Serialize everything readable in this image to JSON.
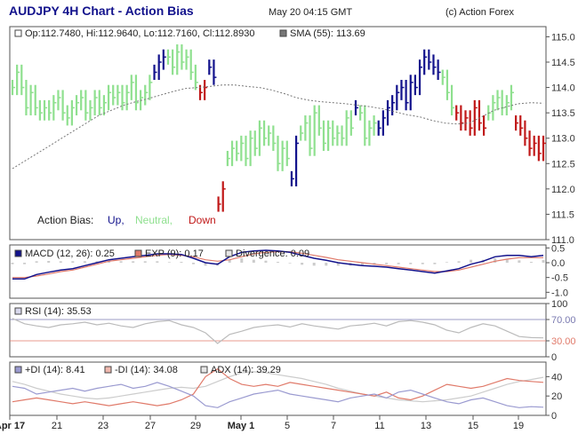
{
  "header": {
    "title": "AUDJPY 4H Chart - Action Bias",
    "datetime": "May 20 04:15 GMT",
    "copyright": "(c) Action Forex"
  },
  "colors": {
    "up": "#12128c",
    "neutral": "#8fe08f",
    "down": "#c01818",
    "sma": "#777777",
    "macd": "#12128c",
    "exp": "#e07a6a",
    "divergence": "#cccccc",
    "rsi": "#9a9ad0",
    "rsi_line": "#bbbbbb",
    "rsi70": "#7a7ab0",
    "rsi30": "#e07a6a",
    "plus_di": "#9a9ad0",
    "minus_di": "#e07a6a",
    "adx": "#cccccc"
  },
  "chart_data": [
    {
      "type": "ohlc",
      "panel": "price",
      "legend": {
        "ohlc": "Op:112.7480, Hi:112.9640, Lo:112.7160, Cl:112.8930",
        "sma": "SMA (55): 113.69"
      },
      "bias_legend": {
        "label": "Action Bias:",
        "up": "Up,",
        "neutral": "Neutral,",
        "down": "Down"
      },
      "ylim": [
        111.0,
        115.2
      ],
      "yticks": [
        "115.0",
        "114.5",
        "114.0",
        "113.5",
        "113.0",
        "112.5",
        "112.0",
        "111.5",
        "111.0"
      ],
      "series": {
        "bias_segments": [
          {
            "bias": "neutral",
            "values": [
              114.0,
              114.3,
              114.0,
              113.6,
              113.9,
              113.6,
              113.5,
              113.6,
              113.5,
              113.7,
              113.8,
              113.5,
              113.4,
              113.6,
              113.7,
              113.8,
              113.5,
              113.6,
              113.8,
              113.6,
              113.7,
              113.9,
              113.8,
              113.9,
              113.7,
              113.9,
              114.1,
              113.7,
              113.8,
              113.9,
              114.1
            ]
          },
          {
            "bias": "up",
            "values": [
              114.3,
              114.5,
              114.6
            ]
          },
          {
            "bias": "neutral",
            "values": [
              114.6,
              114.4,
              114.7,
              114.5,
              114.6,
              114.3,
              114.1
            ]
          },
          {
            "bias": "down",
            "values": [
              113.9,
              114.0
            ]
          },
          {
            "bias": "up",
            "values": [
              114.4,
              114.2
            ]
          },
          {
            "bias": "down",
            "values": [
              111.7,
              112.0
            ]
          },
          {
            "bias": "neutral",
            "values": [
              112.6,
              112.8,
              112.7,
              112.9,
              112.6,
              113.0,
              112.8,
              113.2,
              113.0,
              113.1,
              112.9,
              112.5,
              112.8,
              112.6
            ]
          },
          {
            "bias": "up",
            "values": [
              112.2,
              112.9
            ]
          },
          {
            "bias": "neutral",
            "values": [
              113.1,
              113.3,
              112.8,
              113.5,
              113.2,
              112.9,
              113.2,
              113.0,
              113.1,
              113.0,
              113.4,
              113.2
            ]
          },
          {
            "bias": "up",
            "values": [
              113.6
            ]
          },
          {
            "bias": "neutral",
            "values": [
              113.5,
              113.0,
              113.2,
              113.3
            ]
          },
          {
            "bias": "up",
            "values": [
              113.2,
              113.4,
              113.6,
              113.7,
              113.9,
              114.0,
              113.7,
              114.1,
              114.0,
              114.4,
              114.6,
              114.5,
              114.4,
              114.3
            ]
          },
          {
            "bias": "neutral",
            "values": [
              114.2,
              113.9,
              113.6
            ]
          },
          {
            "bias": "down",
            "values": [
              113.5,
              113.3,
              113.4,
              113.2,
              113.6,
              113.3,
              113.2
            ]
          },
          {
            "bias": "neutral",
            "values": [
              113.5,
              113.7,
              113.8,
              113.6,
              113.7,
              113.9
            ]
          },
          {
            "bias": "down",
            "values": [
              113.3,
              113.2,
              113.0,
              112.8,
              112.9,
              112.7,
              112.9
            ]
          }
        ],
        "sma": [
          112.4,
          112.55,
          112.7,
          112.85,
          113.0,
          113.15,
          113.3,
          113.45,
          113.55,
          113.65,
          113.72,
          113.78,
          113.85,
          113.92,
          113.98,
          114.0,
          114.02,
          114.05,
          114.05,
          114.02,
          114.0,
          113.95,
          113.88,
          113.8,
          113.75,
          113.72,
          113.7,
          113.68,
          113.65,
          113.62,
          113.58,
          113.52,
          113.46,
          113.42,
          113.35,
          113.3,
          113.28,
          113.3,
          113.42,
          113.55,
          113.62,
          113.68,
          113.7,
          113.69
        ]
      }
    },
    {
      "type": "line",
      "panel": "macd",
      "legend": {
        "macd": "MACD (12, 26): 0.25",
        "exp": "EXP (9): 0.17",
        "divergence": "Divergence: 0.09"
      },
      "ylim": [
        -1.2,
        0.6
      ],
      "yticks": [
        "0.5",
        "0.0",
        "-0.5",
        "-1.0"
      ],
      "series": {
        "macd": [
          -0.55,
          -0.55,
          -0.4,
          -0.32,
          -0.25,
          -0.2,
          -0.1,
          0.0,
          0.1,
          0.15,
          0.2,
          0.25,
          0.3,
          0.3,
          0.28,
          0.15,
          0.0,
          -0.05,
          0.2,
          0.35,
          0.4,
          0.42,
          0.4,
          0.35,
          0.25,
          0.15,
          0.08,
          0.0,
          -0.05,
          -0.1,
          -0.12,
          -0.15,
          -0.2,
          -0.25,
          -0.3,
          -0.35,
          -0.28,
          -0.2,
          -0.05,
          0.05,
          0.2,
          0.25,
          0.25,
          0.2,
          0.25
        ],
        "exp": [
          -0.5,
          -0.5,
          -0.45,
          -0.38,
          -0.3,
          -0.25,
          -0.15,
          -0.05,
          0.05,
          0.1,
          0.15,
          0.2,
          0.25,
          0.28,
          0.25,
          0.2,
          0.1,
          0.05,
          0.1,
          0.2,
          0.3,
          0.35,
          0.37,
          0.37,
          0.32,
          0.25,
          0.18,
          0.1,
          0.05,
          0.0,
          -0.05,
          -0.1,
          -0.15,
          -0.2,
          -0.25,
          -0.3,
          -0.3,
          -0.25,
          -0.15,
          -0.05,
          0.05,
          0.12,
          0.17,
          0.17,
          0.17
        ],
        "divergence": [
          -0.05,
          -0.05,
          0.05,
          0.06,
          0.05,
          0.05,
          0.05,
          0.05,
          0.05,
          0.05,
          0.05,
          0.05,
          0.05,
          0.02,
          0.03,
          -0.05,
          -0.1,
          -0.1,
          0.1,
          0.15,
          0.1,
          0.07,
          0.03,
          -0.02,
          -0.07,
          -0.1,
          -0.1,
          -0.1,
          -0.1,
          -0.1,
          -0.07,
          -0.05,
          -0.05,
          -0.05,
          -0.05,
          -0.05,
          0.02,
          0.05,
          0.1,
          0.1,
          0.15,
          0.13,
          0.08,
          0.03,
          0.09
        ]
      }
    },
    {
      "type": "line",
      "panel": "rsi",
      "legend": {
        "rsi": "RSI (14): 35.53"
      },
      "ylim": [
        0,
        100
      ],
      "yticks": [
        "100",
        "70.00",
        "30.00",
        "0"
      ],
      "levels": [
        70,
        30
      ],
      "series": {
        "rsi": [
          72,
          62,
          58,
          55,
          60,
          62,
          65,
          60,
          63,
          58,
          55,
          62,
          66,
          68,
          60,
          55,
          45,
          25,
          42,
          48,
          55,
          58,
          60,
          56,
          62,
          58,
          55,
          52,
          58,
          60,
          63,
          58,
          66,
          68,
          65,
          60,
          50,
          45,
          55,
          62,
          58,
          48,
          38,
          36,
          35.53
        ]
      }
    },
    {
      "type": "line",
      "panel": "adx",
      "legend": {
        "plus_di": "+DI (14): 8.41",
        "minus_di": "-DI (14): 34.08",
        "adx": "ADX (14): 39.29"
      },
      "ylim": [
        0,
        55
      ],
      "yticks": [
        "40",
        "20",
        "0"
      ],
      "series": {
        "plus_di": [
          30,
          28,
          22,
          24,
          26,
          28,
          25,
          28,
          30,
          32,
          28,
          30,
          34,
          30,
          25,
          20,
          10,
          8,
          14,
          18,
          22,
          24,
          26,
          22,
          20,
          18,
          16,
          14,
          18,
          20,
          22,
          18,
          24,
          26,
          22,
          18,
          14,
          12,
          16,
          18,
          14,
          10,
          8,
          9,
          8.41
        ],
        "minus_di": [
          14,
          16,
          18,
          16,
          14,
          12,
          14,
          12,
          10,
          12,
          14,
          12,
          10,
          12,
          16,
          22,
          40,
          48,
          38,
          32,
          30,
          32,
          30,
          34,
          32,
          30,
          28,
          26,
          24,
          22,
          20,
          24,
          18,
          16,
          20,
          26,
          32,
          30,
          28,
          30,
          34,
          38,
          36,
          35,
          34.08
        ],
        "adx": [
          35,
          32,
          28,
          25,
          22,
          20,
          18,
          17,
          18,
          20,
          22,
          24,
          26,
          28,
          29,
          28,
          30,
          35,
          40,
          44,
          45,
          44,
          42,
          40,
          38,
          35,
          32,
          28,
          25,
          22,
          20,
          18,
          16,
          15,
          14,
          15,
          16,
          18,
          20,
          24,
          28,
          32,
          35,
          37,
          39.29
        ]
      }
    }
  ],
  "x_axis": {
    "labels": [
      "Apr 17",
      "21",
      "23",
      "27",
      "29",
      "May 1",
      "5",
      "7",
      "11",
      "13",
      "15",
      "19"
    ],
    "bold": [
      "Apr 17",
      "May 1"
    ]
  }
}
